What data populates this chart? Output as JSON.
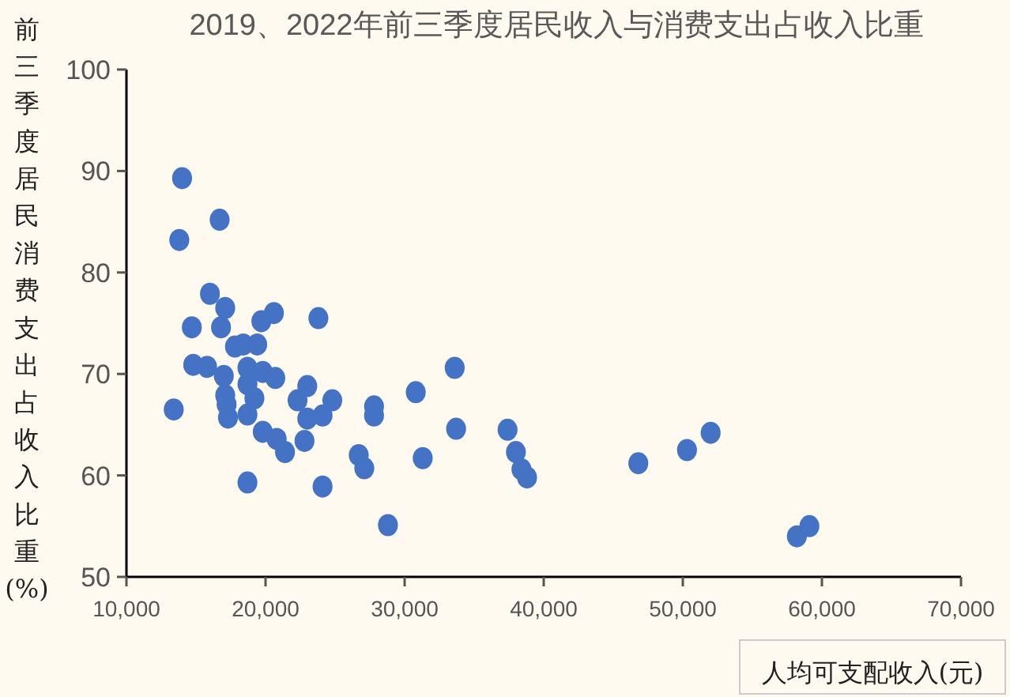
{
  "chart_data": {
    "type": "scatter",
    "title": "2019、2022年前三季度居民收入与消费支出占收入比重",
    "xlabel": "人均可支配收入(元)",
    "ylabel": "前三季度居民消费支出占收入比重(%)",
    "x": [
      14000,
      13800,
      16700,
      16000,
      17100,
      16800,
      14700,
      19700,
      20600,
      23800,
      17800,
      18400,
      19400,
      14800,
      15800,
      17000,
      17100,
      17300,
      17200,
      18700,
      18700,
      19200,
      18700,
      19800,
      20700,
      19800,
      20800,
      21400,
      22300,
      23000,
      23000,
      24100,
      24800,
      22800,
      27800,
      27800,
      26700,
      27100,
      13400,
      18700,
      24100,
      28800,
      33600,
      30800,
      33700,
      37400,
      38000,
      38400,
      38800,
      31300,
      46800,
      50300,
      52000,
      58200,
      59100
    ],
    "values": [
      89.3,
      83.2,
      85.2,
      77.9,
      76.5,
      74.6,
      74.6,
      75.2,
      76.0,
      75.5,
      72.7,
      72.9,
      72.9,
      70.9,
      70.7,
      69.8,
      67.9,
      65.7,
      67.0,
      70.6,
      69.0,
      67.6,
      66.0,
      70.2,
      69.6,
      64.3,
      63.6,
      62.3,
      67.4,
      68.8,
      65.6,
      65.9,
      67.4,
      63.4,
      66.8,
      65.9,
      62.0,
      60.7,
      66.5,
      59.3,
      58.9,
      55.1,
      70.6,
      68.2,
      64.6,
      64.5,
      62.3,
      60.6,
      59.8,
      61.7,
      61.2,
      62.5,
      64.2,
      54.0,
      55.0
    ],
    "color": "#4472c4",
    "marker": "circle",
    "xlim": [
      10000,
      70000
    ],
    "xticks": [
      {
        "value": 10000,
        "label": "10,000"
      },
      {
        "value": 20000,
        "label": "20,000"
      },
      {
        "value": 30000,
        "label": "30,000"
      },
      {
        "value": 40000,
        "label": "40,000"
      },
      {
        "value": 50000,
        "label": "50,000"
      },
      {
        "value": 60000,
        "label": "60,000"
      },
      {
        "value": 70000,
        "label": "70,000"
      }
    ],
    "ylim": [
      50,
      100
    ],
    "yticks": [
      50,
      60,
      70,
      80,
      90,
      100
    ],
    "grid": false
  }
}
